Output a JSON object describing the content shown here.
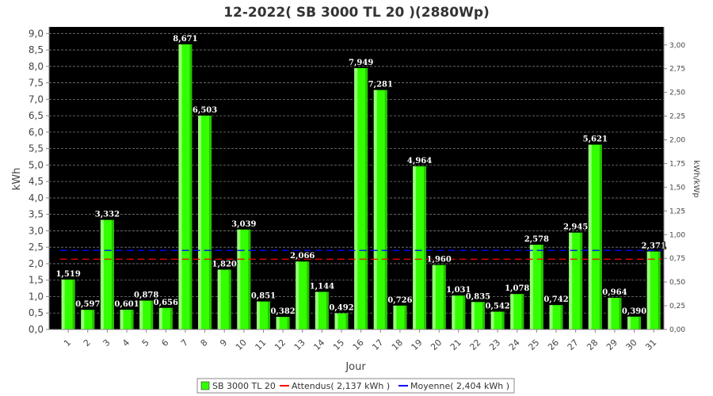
{
  "chart_data": {
    "type": "bar",
    "title": "12-2022( SB 3000 TL 20 )(2880Wp)",
    "xlabel": "Jour",
    "ylabel": "kWh",
    "y2label": "kWh/kWp",
    "ylim": [
      0,
      9.2
    ],
    "y2lim": [
      0,
      3.19
    ],
    "yticks": [
      "0,0",
      "0,5",
      "1,0",
      "1,5",
      "2,0",
      "2,5",
      "3,0",
      "3,5",
      "4,0",
      "4,5",
      "5,0",
      "5,5",
      "6,0",
      "6,5",
      "7,0",
      "7,5",
      "8,0",
      "8,5",
      "9,0"
    ],
    "y2ticks": [
      "0,00",
      "0,25",
      "0,50",
      "0,75",
      "1,00",
      "1,25",
      "1,50",
      "1,75",
      "2,00",
      "2,25",
      "2,50",
      "2,75",
      "3,00"
    ],
    "categories": [
      "1",
      "2",
      "3",
      "4",
      "5",
      "6",
      "7",
      "8",
      "9",
      "10",
      "11",
      "12",
      "13",
      "14",
      "15",
      "16",
      "17",
      "18",
      "19",
      "20",
      "21",
      "22",
      "23",
      "24",
      "25",
      "26",
      "27",
      "28",
      "29",
      "30",
      "31"
    ],
    "series": [
      {
        "name": "SB 3000 TL 20",
        "color": "#33ff00",
        "values": [
          1.519,
          0.597,
          3.332,
          0.601,
          0.878,
          0.656,
          8.671,
          6.503,
          1.82,
          3.039,
          0.851,
          0.382,
          2.066,
          1.144,
          0.492,
          7.949,
          7.281,
          0.726,
          4.964,
          1.96,
          1.031,
          0.835,
          0.542,
          1.078,
          2.578,
          0.742,
          2.945,
          5.621,
          0.964,
          0.39,
          2.371
        ],
        "labels": [
          "1,519",
          "0,597",
          "3,332",
          "0,601",
          "0,878",
          "0,656",
          "8,671",
          "6,503",
          "1,820",
          "3,039",
          "0,851",
          "0,382",
          "2,066",
          "1,144",
          "0,492",
          "7,949",
          "7,281",
          "0,726",
          "4,964",
          "1,960",
          "1,031",
          "0,835",
          "0,542",
          "1,078",
          "2,578",
          "0,742",
          "2,945",
          "5,621",
          "0,964",
          "0,390",
          "2,371"
        ]
      }
    ],
    "reference_lines": [
      {
        "name": "Attendus( 2,137 kWh )",
        "value": 2.137,
        "color": "#ff0000",
        "dashed": true
      },
      {
        "name": "Moyenne( 2,404 kWh )",
        "value": 2.404,
        "color": "#0000ff",
        "dashed": true
      }
    ],
    "grid": true,
    "background": "#000000",
    "legend_position": "bottom"
  }
}
